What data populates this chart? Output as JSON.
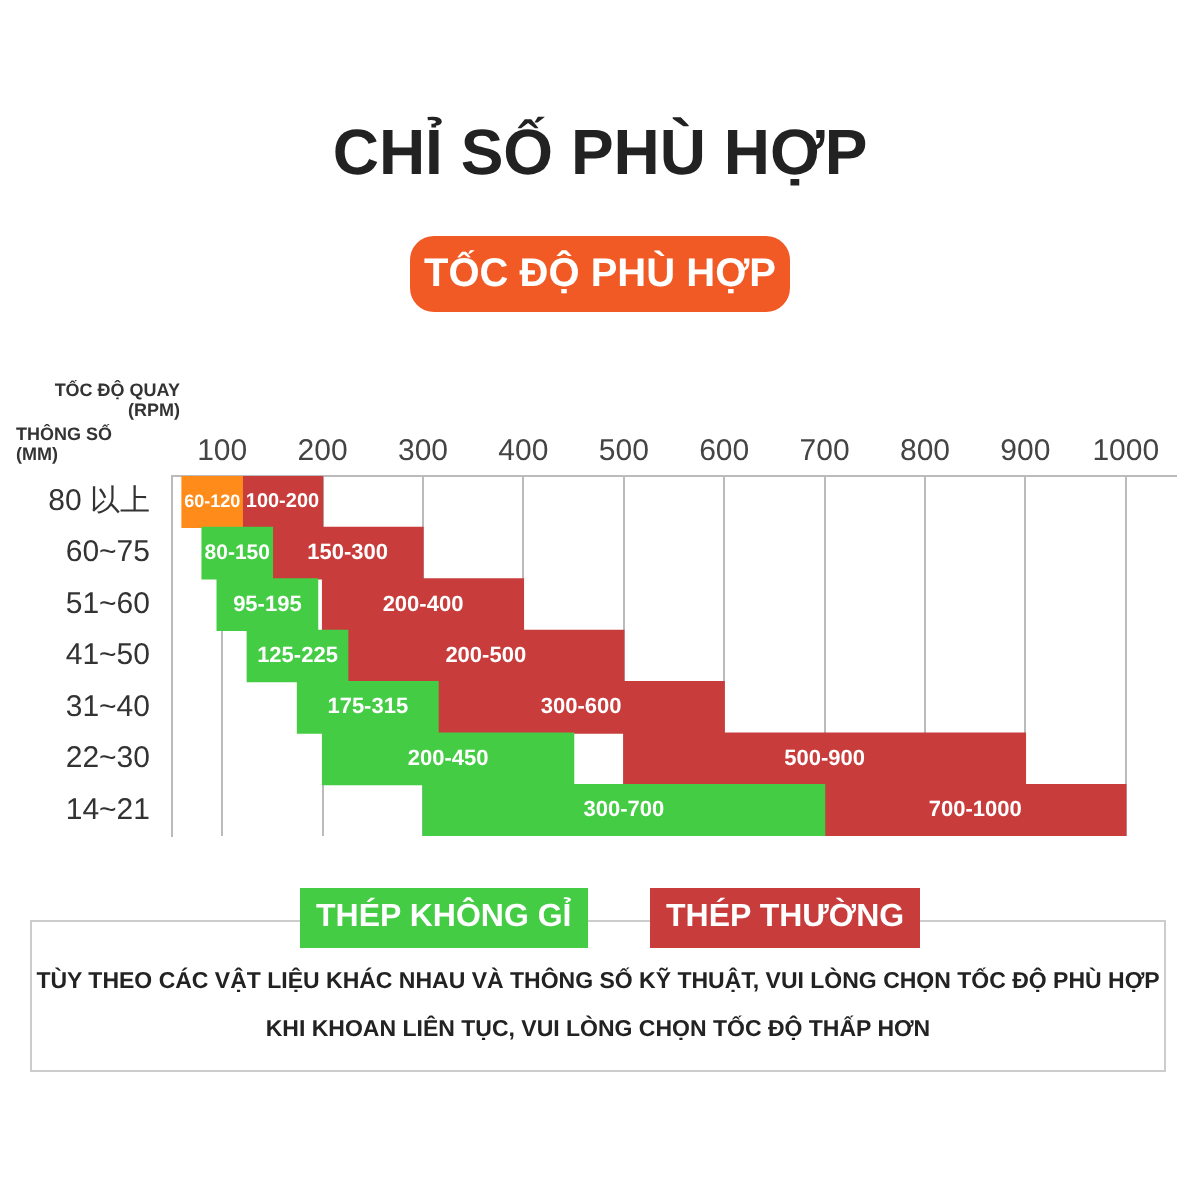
{
  "chart_data": {
    "type": "bar",
    "orientation": "horizontal",
    "title": "CHỈ SỐ PHÙ HỢP",
    "subtitle": "TỐC ĐỘ PHÙ HỢP",
    "xlabel": "TỐC ĐỘ QUAY (RPM)",
    "ylabel": "THÔNG SỐ (MM)",
    "categories": [
      "80 以上",
      "60~75",
      "51~60",
      "41~50",
      "31~40",
      "22~30",
      "14~21"
    ],
    "xlim": [
      50,
      1050
    ],
    "xticks": [
      100,
      200,
      300,
      400,
      500,
      600,
      700,
      800,
      900,
      1000
    ],
    "grid": "x",
    "legend": "bottom",
    "series": [
      {
        "name": "THÉP KHÔNG GỈ",
        "color": "#44cc44",
        "colors": [
          "#ff8c1a",
          "#44cc44",
          "#44cc44",
          "#44cc44",
          "#44cc44",
          "#44cc44",
          "#44cc44"
        ],
        "base": [
          60,
          80,
          95,
          125,
          175,
          200,
          300
        ],
        "values": [
          60,
          70,
          100,
          100,
          140,
          250,
          400
        ],
        "value_labels": [
          "60-120",
          "80-150",
          "95-195",
          "125-225",
          "175-315",
          "200-450",
          "300-700"
        ]
      },
      {
        "name": "THÉP THƯỜNG",
        "color": "#c83c3c",
        "base": [
          100,
          150,
          200,
          200,
          300,
          500,
          700
        ],
        "values": [
          100,
          150,
          200,
          300,
          300,
          400,
          300
        ],
        "value_labels": [
          "100-200",
          "150-300",
          "200-400",
          "200-500",
          "300-600",
          "500-900",
          "700-1000"
        ]
      }
    ],
    "annotations": [
      "TÙY THEO CÁC VẬT LIỆU KHÁC NHAU VÀ THÔNG SỐ KỸ THUẬT, VUI LÒNG CHỌN TỐC ĐỘ PHÙ HỢP",
      "KHI KHOAN LIÊN TỤC, VUI LÒNG CHỌN TỐC ĐỘ THẤP HƠN"
    ]
  }
}
